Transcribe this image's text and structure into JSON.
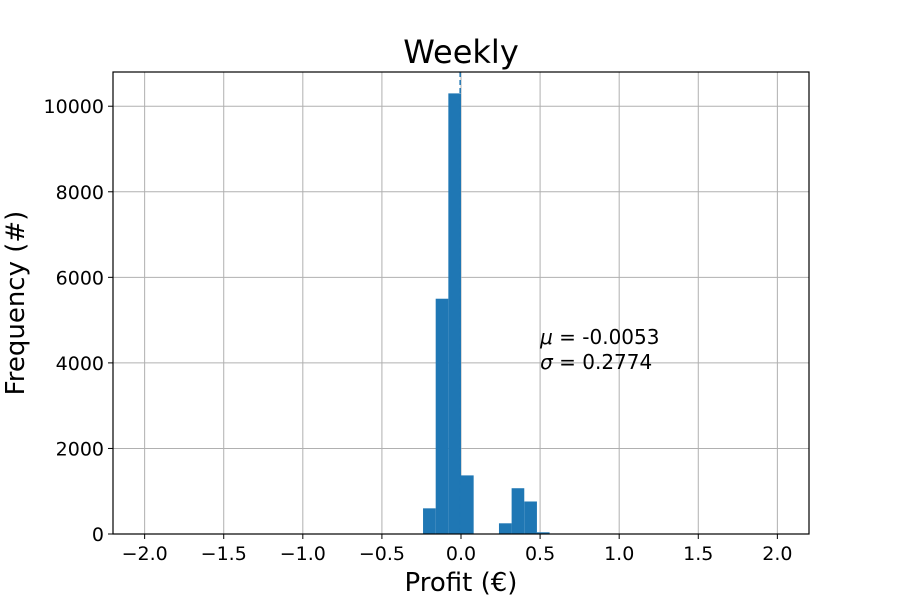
{
  "chart_data": {
    "type": "bar",
    "title": "Weekly",
    "xlabel": "Profit (€)",
    "ylabel": "Frequency (#)",
    "xlim": [
      -2.2,
      2.2
    ],
    "ylim": [
      0,
      10800
    ],
    "xticks": [
      -2.0,
      -1.5,
      -1.0,
      -0.5,
      0.0,
      0.5,
      1.0,
      1.5,
      2.0
    ],
    "xtick_labels": [
      "−2.0",
      "−1.5",
      "−1.0",
      "−0.5",
      "0.0",
      "0.5",
      "1.0",
      "1.5",
      "2.0"
    ],
    "yticks": [
      0,
      2000,
      4000,
      6000,
      8000,
      10000
    ],
    "ytick_labels": [
      "0",
      "2000",
      "4000",
      "6000",
      "8000",
      "10000"
    ],
    "grid": true,
    "bar_color": "#1f77b4",
    "bins": [
      {
        "x0": -0.24,
        "x1": -0.16,
        "value": 600
      },
      {
        "x0": -0.16,
        "x1": -0.08,
        "value": 5500
      },
      {
        "x0": -0.08,
        "x1": 0.0,
        "value": 10300
      },
      {
        "x0": 0.0,
        "x1": 0.08,
        "value": 1370
      },
      {
        "x0": 0.24,
        "x1": 0.32,
        "value": 250
      },
      {
        "x0": 0.32,
        "x1": 0.4,
        "value": 1070
      },
      {
        "x0": 0.4,
        "x1": 0.48,
        "value": 760
      },
      {
        "x0": 0.48,
        "x1": 0.56,
        "value": 40
      }
    ],
    "mean_line": {
      "x": -0.0053,
      "color": "#1f77b4",
      "style": "dashed"
    },
    "annotation": {
      "mu_symbol": "μ",
      "mu_text": " =  -0.0053",
      "sigma_symbol": "σ",
      "sigma_text": " = 0.2774",
      "x": 0.5,
      "y_top": 4600
    }
  }
}
